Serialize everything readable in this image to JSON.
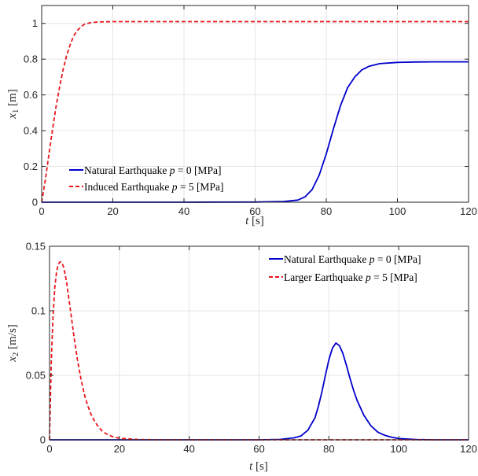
{
  "chart_data": [
    {
      "type": "line",
      "xlabel": "t [s]",
      "ylabel": "x1 [m]",
      "xlim": [
        0,
        120
      ],
      "ylim": [
        0,
        1.1
      ],
      "xticks": [
        0,
        20,
        40,
        60,
        80,
        100,
        120
      ],
      "yticks": [
        0,
        0.2,
        0.4,
        0.6,
        0.8,
        1
      ],
      "xtick_labels": [
        "0",
        "20",
        "40",
        "60",
        "80",
        "100",
        "120"
      ],
      "ytick_labels": [
        "0",
        "0.2",
        "0.4",
        "0.6",
        "0.8",
        "1"
      ],
      "grid": true,
      "legend_position": "bottom-left",
      "series": [
        {
          "name": "Natural Earthquake p = 0 [MPa]",
          "color": "#0000cc",
          "dash": "solid",
          "x": [
            0,
            20,
            40,
            60,
            68,
            72,
            74,
            76,
            78,
            80,
            82,
            84,
            86,
            88,
            90,
            92,
            95,
            100,
            105,
            110,
            120
          ],
          "y": [
            0,
            0,
            0,
            0.001,
            0.004,
            0.012,
            0.03,
            0.07,
            0.15,
            0.27,
            0.41,
            0.54,
            0.64,
            0.7,
            0.74,
            0.76,
            0.775,
            0.782,
            0.784,
            0.785,
            0.785
          ]
        },
        {
          "name": "Induced Earthquake p = 5 [MPa]",
          "color": "#e8161b",
          "dash": "dashed",
          "x": [
            0,
            1,
            2,
            3,
            4,
            5,
            6,
            7,
            8,
            9,
            10,
            11,
            12,
            13,
            14,
            16,
            18,
            20,
            25,
            30,
            40,
            60,
            80,
            100,
            120
          ],
          "y": [
            0,
            0.12,
            0.26,
            0.4,
            0.53,
            0.64,
            0.74,
            0.82,
            0.88,
            0.93,
            0.96,
            0.98,
            0.995,
            1.0,
            1.005,
            1.008,
            1.009,
            1.01,
            1.01,
            1.01,
            1.01,
            1.01,
            1.01,
            1.01,
            1.01
          ]
        }
      ]
    },
    {
      "type": "line",
      "xlabel": "t [s]",
      "ylabel": "x2 [m/s]",
      "xlim": [
        0,
        120
      ],
      "ylim": [
        0,
        0.15
      ],
      "xticks": [
        0,
        20,
        40,
        60,
        80,
        100,
        120
      ],
      "yticks": [
        0,
        0.05,
        0.1,
        0.15
      ],
      "xtick_labels": [
        "0",
        "20",
        "40",
        "60",
        "80",
        "100",
        "120"
      ],
      "ytick_labels": [
        "0",
        "0.05",
        "0.1",
        "0.15"
      ],
      "grid": true,
      "legend_position": "top-right",
      "series": [
        {
          "name": "Natural Earthquake p = 0 [MPa]",
          "color": "#0000cc",
          "dash": "solid",
          "x": [
            0,
            20,
            40,
            60,
            66,
            70,
            72,
            74,
            76,
            77,
            78,
            79,
            80,
            81,
            82,
            83,
            84,
            85,
            86,
            87,
            88,
            90,
            92,
            94,
            96,
            98,
            100,
            105,
            110,
            120
          ],
          "y": [
            0,
            0,
            0,
            0,
            0.0003,
            0.0015,
            0.003,
            0.0075,
            0.017,
            0.026,
            0.037,
            0.05,
            0.062,
            0.071,
            0.075,
            0.073,
            0.067,
            0.058,
            0.048,
            0.039,
            0.031,
            0.019,
            0.011,
            0.006,
            0.0035,
            0.002,
            0.001,
            0.0002,
            0,
            0
          ]
        },
        {
          "name": "Larger Earthquake p = 5 [MPa]",
          "color": "#e8161b",
          "dash": "dashed",
          "x": [
            0,
            0.5,
            1,
            1.5,
            2,
            2.5,
            3,
            3.5,
            4,
            4.5,
            5,
            6,
            7,
            8,
            9,
            10,
            11,
            12,
            13,
            14,
            15,
            16,
            18,
            20,
            25,
            30,
            40,
            60,
            80,
            100,
            120
          ],
          "y": [
            0,
            0.06,
            0.095,
            0.118,
            0.13,
            0.136,
            0.138,
            0.1375,
            0.134,
            0.128,
            0.12,
            0.1,
            0.08,
            0.062,
            0.047,
            0.035,
            0.026,
            0.019,
            0.014,
            0.01,
            0.007,
            0.005,
            0.0025,
            0.0012,
            0.0003,
            0,
            0,
            0,
            0,
            0,
            0
          ]
        }
      ]
    }
  ]
}
